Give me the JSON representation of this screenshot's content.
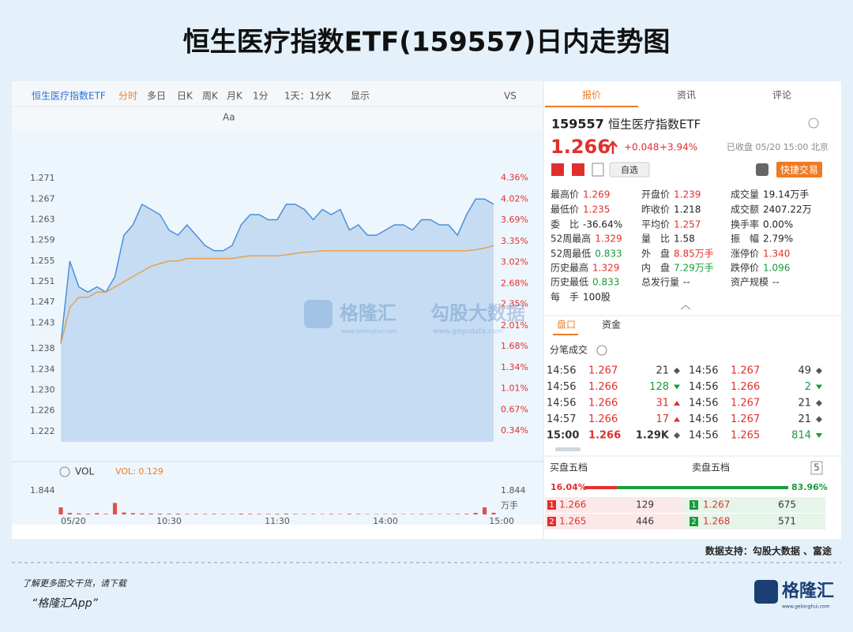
{
  "title": "恒生医疗指数ETF(159557)日内走势图",
  "toolbar": {
    "name": "恒生医疗指数ETF",
    "tabs": [
      "分时",
      "多日",
      "日K",
      "周K",
      "月K",
      "1分",
      "1天：1分K",
      "显示",
      "VS"
    ],
    "active": 0,
    "tools": [
      "Aa"
    ]
  },
  "chart_data": [
    {
      "type": "line",
      "area": true,
      "grid": false,
      "categories": [
        "05/20",
        null,
        null,
        null,
        null,
        null,
        null,
        null,
        null,
        null,
        null,
        null,
        "10:30",
        null,
        null,
        null,
        null,
        null,
        null,
        null,
        null,
        null,
        null,
        null,
        "11:30",
        null,
        null,
        null,
        null,
        null,
        null,
        null,
        null,
        null,
        null,
        null,
        "14:00",
        null,
        null,
        null,
        null,
        null,
        null,
        null,
        null,
        null,
        null,
        null,
        "15:00"
      ],
      "series": [
        {
          "color": "#4a90d9",
          "values": [
            1.239,
            1.255,
            1.25,
            1.249,
            1.25,
            1.249,
            1.252,
            1.26,
            1.262,
            1.266,
            1.265,
            1.264,
            1.261,
            1.26,
            1.262,
            1.26,
            1.258,
            1.257,
            1.257,
            1.258,
            1.262,
            1.264,
            1.264,
            1.263,
            1.263,
            1.266,
            1.266,
            1.265,
            1.263,
            1.265,
            1.264,
            1.265,
            1.261,
            1.262,
            1.26,
            1.26,
            1.261,
            1.262,
            1.262,
            1.261,
            1.263,
            1.263,
            1.262,
            1.262,
            1.26,
            1.264,
            1.267,
            1.267,
            1.266
          ]
        },
        {
          "color": "#e8a050",
          "values": [
            1.239,
            1.246,
            1.248,
            1.248,
            1.249,
            1.249,
            1.25,
            1.251,
            1.252,
            1.253,
            1.254,
            1.2545,
            1.255,
            1.255,
            1.2555,
            1.2555,
            1.2555,
            1.2555,
            1.2555,
            1.2555,
            1.2558,
            1.256,
            1.256,
            1.256,
            1.256,
            1.2562,
            1.2565,
            1.2567,
            1.2568,
            1.257,
            1.257,
            1.257,
            1.257,
            1.257,
            1.257,
            1.257,
            1.257,
            1.257,
            1.257,
            1.257,
            1.257,
            1.257,
            1.257,
            1.257,
            1.257,
            1.257,
            1.2572,
            1.2575,
            1.258
          ]
        }
      ],
      "ylim": [
        1.22,
        1.2727
      ],
      "yticks": [
        1.271,
        1.267,
        1.263,
        1.259,
        1.255,
        1.251,
        1.247,
        1.243,
        1.238,
        1.234,
        {
          "value": 1.23,
          "label": "1.230"
        },
        1.226,
        1.222
      ],
      "y2lim": [
        0.164,
        4.491
      ],
      "y2ticks": [
        {
          "value": 4.36,
          "label": "4.36%"
        },
        {
          "value": 4.02,
          "label": "4.02%"
        },
        {
          "value": 3.69,
          "label": "3.69%"
        },
        {
          "value": 3.35,
          "label": "3.35%"
        },
        {
          "value": 3.02,
          "label": "3.02%"
        },
        {
          "value": 2.68,
          "label": "2.68%"
        },
        {
          "value": 2.35,
          "label": "2.35%"
        },
        {
          "value": 2.01,
          "label": "2.01%"
        },
        {
          "value": 1.68,
          "label": "1.68%"
        },
        {
          "value": 1.34,
          "label": "1.34%"
        },
        {
          "value": 1.01,
          "label": "1.01%"
        },
        {
          "value": 0.67,
          "label": "0.67%"
        },
        {
          "value": 0.34,
          "label": "0.34%"
        }
      ]
    },
    {
      "type": "bar",
      "title": "VOL",
      "indicator_label": "VOL: 0.129",
      "unit": "万手",
      "color": "#e0504a",
      "values": [
        0.55,
        0.12,
        0.08,
        0.06,
        0.1,
        0.05,
        0.9,
        0.15,
        0.1,
        0.08,
        0.07,
        0.06,
        0.05,
        0.06,
        0.04,
        0.05,
        0.04,
        0.05,
        0.04,
        0.03,
        0.06,
        0.05,
        0.04,
        0.04,
        0.05,
        0.06,
        0.04,
        0.03,
        0.04,
        0.03,
        0.04,
        0.03,
        0.05,
        0.04,
        0.03,
        0.03,
        0.03,
        0.04,
        0.03,
        0.03,
        0.04,
        0.03,
        0.03,
        0.03,
        0.04,
        0.05,
        0.12,
        0.55,
        0.129
      ],
      "ylim": [
        0,
        1.844
      ],
      "yticks": [
        1.844
      ]
    }
  ],
  "quote": {
    "tabs": [
      "报价",
      "资讯",
      "评论"
    ],
    "code": "159557",
    "name": "恒生医疗指数ETF",
    "price": "1.266",
    "change": "+0.048",
    "change_pct": "+3.94%",
    "status": "已收盘 05/20 15:00 北京",
    "watch": "自选",
    "trade": "快捷交易",
    "stats": [
      [
        {
          "label": "最高价",
          "value": "1.269",
          "color": "#e0302d"
        },
        {
          "label": "开盘价",
          "value": "1.239",
          "color": "#e0302d"
        },
        {
          "label": "成交量",
          "value": "19.14万手"
        }
      ],
      [
        {
          "label": "最低价",
          "value": "1.235",
          "color": "#e0302d"
        },
        {
          "label": "昨收价",
          "value": "1.218"
        },
        {
          "label": "成交额",
          "value": "2407.22万"
        }
      ],
      [
        {
          "label": "委　比",
          "value": "-36.64%"
        },
        {
          "label": "平均价",
          "value": "1.257",
          "color": "#e0302d"
        },
        {
          "label": "换手率",
          "value": "0.00%"
        }
      ],
      [
        {
          "label": "52周最高",
          "value": "1.329",
          "color": "#e0302d"
        },
        {
          "label": "量　比",
          "value": "1.58"
        },
        {
          "label": "振　幅",
          "value": "2.79%"
        }
      ],
      [
        {
          "label": "52周最低",
          "value": "0.833",
          "color": "#1a9b3c"
        },
        {
          "label": "外　盘",
          "value": "8.85万手",
          "color": "#e0302d"
        },
        {
          "label": "涨停价",
          "value": "1.340",
          "color": "#e0302d"
        }
      ],
      [
        {
          "label": "历史最高",
          "value": "1.329",
          "color": "#e0302d"
        },
        {
          "label": "内　盘",
          "value": "7.29万手",
          "color": "#1a9b3c"
        },
        {
          "label": "跌停价",
          "value": "1.096",
          "color": "#1a9b3c"
        }
      ],
      [
        {
          "label": "历史最低",
          "value": "0.833",
          "color": "#1a9b3c"
        },
        {
          "label": "总发行量",
          "value": "--"
        },
        {
          "label": "资产规模",
          "value": "--"
        }
      ],
      [
        {
          "label": "每　手",
          "value": "100股"
        }
      ]
    ],
    "sub_tabs": [
      "盘口",
      "资金"
    ],
    "trades": {
      "title": "分笔成交",
      "left": [
        {
          "time": "14:56",
          "price": "1.267",
          "volume": "21",
          "dir": "flat"
        },
        {
          "time": "14:56",
          "price": "1.266",
          "volume": "128",
          "dir": "down"
        },
        {
          "time": "14:56",
          "price": "1.266",
          "volume": "31",
          "dir": "up"
        },
        {
          "time": "14:57",
          "price": "1.266",
          "volume": "17",
          "dir": "up"
        },
        {
          "time": "15:00",
          "price": "1.266",
          "volume": "1.29K",
          "dir": "flat",
          "bold": true
        }
      ],
      "right": [
        {
          "time": "14:56",
          "price": "1.267",
          "volume": "49",
          "dir": "flat"
        },
        {
          "time": "14:56",
          "price": "1.266",
          "volume": "2",
          "dir": "down"
        },
        {
          "time": "14:56",
          "price": "1.267",
          "volume": "21",
          "dir": "flat"
        },
        {
          "time": "14:56",
          "price": "1.267",
          "volume": "21",
          "dir": "flat"
        },
        {
          "time": "14:56",
          "price": "1.265",
          "volume": "814",
          "dir": "down"
        }
      ]
    },
    "book": {
      "bid_title": "买盘五档",
      "ask_title": "卖盘五档",
      "levels": "5",
      "bid_pct": {
        "value": 16.04,
        "label": "16.04%"
      },
      "ask_pct": {
        "value": 83.96,
        "label": "83.96%"
      },
      "bids": [
        {
          "level": "1",
          "price": "1.266",
          "volume": "129"
        },
        {
          "level": "2",
          "price": "1.265",
          "volume": "446"
        }
      ],
      "asks": [
        {
          "level": "1",
          "price": "1.267",
          "volume": "675"
        },
        {
          "level": "2",
          "price": "1.268",
          "volume": "571"
        }
      ]
    }
  },
  "watermark": {
    "brand": "格隆汇",
    "brand_url": "www.gelonghui.com",
    "data": "勾股大数据",
    "data_url": "www.gogudata.com"
  },
  "source": "数据支持：勾股大数据 、富途",
  "footer": {
    "note": "了解更多图文干货，请下载",
    "app": "“格隆汇App”",
    "logo": "格隆汇",
    "logo_url": "www.gelonghui.com"
  }
}
